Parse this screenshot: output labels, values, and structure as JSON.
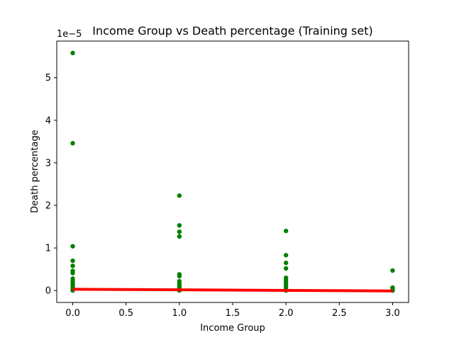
{
  "chart_data": {
    "type": "scatter",
    "title": "Income Group vs Death percentage (Training set)",
    "xlabel": "Income Group",
    "ylabel": "Death percentage",
    "y_scale_note": "1e−5",
    "xlim": [
      -0.15,
      3.15
    ],
    "ylim": [
      -0.28,
      5.86
    ],
    "x_ticks": [
      0,
      0.5,
      1,
      1.5,
      2,
      2.5,
      3
    ],
    "x_tick_labels": [
      "0.0",
      "0.5",
      "1.0",
      "1.5",
      "2.0",
      "2.5",
      "3.0"
    ],
    "y_ticks": [
      0,
      1,
      2,
      3,
      4,
      5
    ],
    "y_tick_labels": [
      "0",
      "1",
      "2",
      "3",
      "4",
      "5"
    ],
    "grid": false,
    "points_color": "#008000",
    "line_color": "#ff0000",
    "points": [
      {
        "x": 0,
        "y": 5.58
      },
      {
        "x": 0,
        "y": 3.46
      },
      {
        "x": 0,
        "y": 1.04
      },
      {
        "x": 0,
        "y": 0.7
      },
      {
        "x": 0,
        "y": 0.58
      },
      {
        "x": 0,
        "y": 0.46
      },
      {
        "x": 0,
        "y": 0.41
      },
      {
        "x": 0,
        "y": 0.28
      },
      {
        "x": 0,
        "y": 0.22
      },
      {
        "x": 0,
        "y": 0.16
      },
      {
        "x": 0,
        "y": 0.11
      },
      {
        "x": 0,
        "y": 0.06
      },
      {
        "x": 0,
        "y": 0.02
      },
      {
        "x": 0,
        "y": 0.0
      },
      {
        "x": 1,
        "y": 2.23
      },
      {
        "x": 1,
        "y": 1.53
      },
      {
        "x": 1,
        "y": 1.38
      },
      {
        "x": 1,
        "y": 1.27
      },
      {
        "x": 1,
        "y": 0.38
      },
      {
        "x": 1,
        "y": 0.34
      },
      {
        "x": 1,
        "y": 0.22
      },
      {
        "x": 1,
        "y": 0.16
      },
      {
        "x": 1,
        "y": 0.11
      },
      {
        "x": 1,
        "y": 0.07
      },
      {
        "x": 1,
        "y": 0.03
      },
      {
        "x": 1,
        "y": 0.0
      },
      {
        "x": 2,
        "y": 1.4
      },
      {
        "x": 2,
        "y": 0.83
      },
      {
        "x": 2,
        "y": 0.65
      },
      {
        "x": 2,
        "y": 0.52
      },
      {
        "x": 2,
        "y": 0.3
      },
      {
        "x": 2,
        "y": 0.24
      },
      {
        "x": 2,
        "y": 0.18
      },
      {
        "x": 2,
        "y": 0.12
      },
      {
        "x": 2,
        "y": 0.07
      },
      {
        "x": 2,
        "y": 0.03
      },
      {
        "x": 2,
        "y": 0.0
      },
      {
        "x": 3,
        "y": 0.47
      },
      {
        "x": 3,
        "y": 0.07
      },
      {
        "x": 3,
        "y": 0.03
      },
      {
        "x": 3,
        "y": 0.0
      }
    ],
    "regression_line": {
      "x": [
        0,
        3
      ],
      "y": [
        0.03,
        -0.01
      ]
    }
  }
}
